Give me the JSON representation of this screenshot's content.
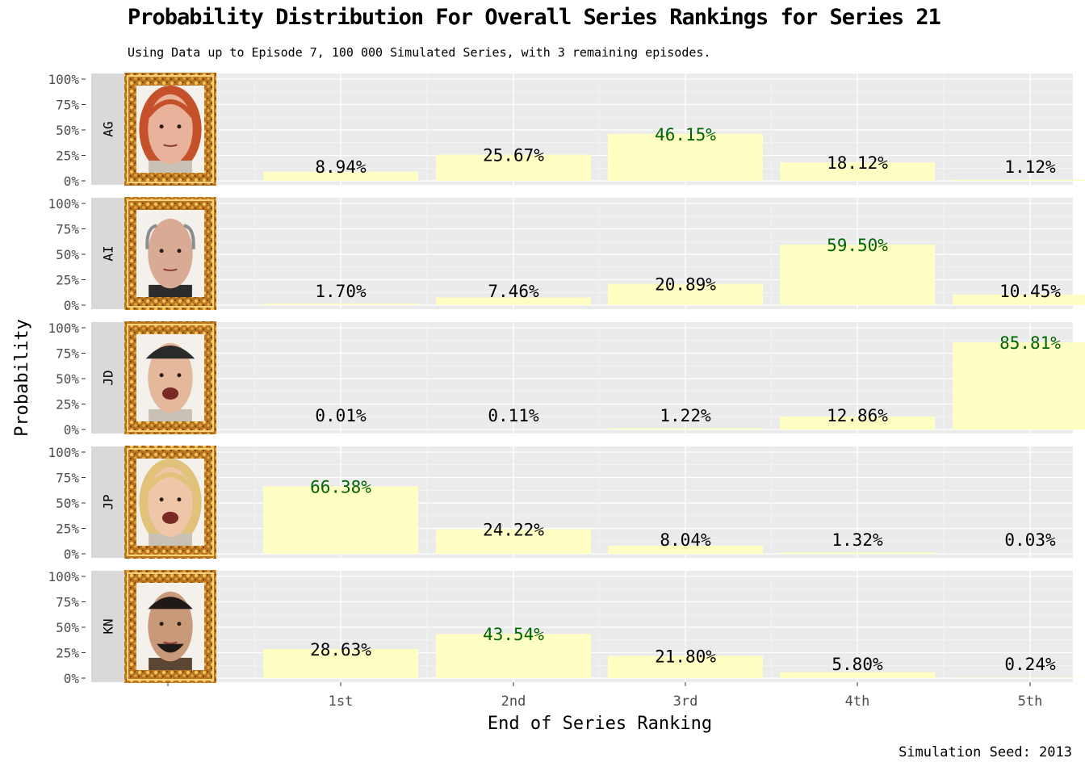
{
  "title": "Probability Distribution For Overall Series Rankings for Series 21",
  "subtitle": "Using Data up to Episode 7, 100 000 Simulated Series, with 3 remaining episodes.",
  "caption": "Simulation Seed: 2013",
  "colors": {
    "panel_bg": "#ebebeb",
    "strip_bg": "#d9d9d9",
    "bar_fill": "#ffffc4",
    "label_default": "#000000",
    "label_highlight": "#006400",
    "frame": "#c8862a"
  },
  "chart_data": {
    "type": "bar",
    "facet_by": "contestant",
    "categories": [
      "1st",
      "2nd",
      "3rd",
      "4th",
      "5th"
    ],
    "xlabel": "End of Series Ranking",
    "ylabel": "Probability",
    "ylim": [
      0,
      1
    ],
    "yticks": [
      "0%",
      "25%",
      "50%",
      "75%",
      "100%"
    ],
    "grid": true,
    "series": [
      {
        "name": "AG",
        "values": [
          0.0894,
          0.2567,
          0.4615,
          0.1812,
          0.0112
        ],
        "labels": [
          "8.94%",
          "25.67%",
          "46.15%",
          "18.12%",
          "1.12%"
        ]
      },
      {
        "name": "AI",
        "values": [
          0.017,
          0.0746,
          0.2089,
          0.595,
          0.1045
        ],
        "labels": [
          "1.70%",
          "7.46%",
          "20.89%",
          "59.50%",
          "10.45%"
        ]
      },
      {
        "name": "JD",
        "values": [
          0.0001,
          0.0011,
          0.0122,
          0.1286,
          0.8581
        ],
        "labels": [
          "0.01%",
          "0.11%",
          "1.22%",
          "12.86%",
          "85.81%"
        ]
      },
      {
        "name": "JP",
        "values": [
          0.6638,
          0.2422,
          0.0804,
          0.0132,
          0.0003
        ],
        "labels": [
          "66.38%",
          "24.22%",
          "8.04%",
          "1.32%",
          "0.03%"
        ]
      },
      {
        "name": "KN",
        "values": [
          0.2863,
          0.4354,
          0.218,
          0.058,
          0.0024
        ],
        "labels": [
          "28.63%",
          "43.54%",
          "21.80%",
          "5.80%",
          "0.24%"
        ]
      }
    ]
  }
}
